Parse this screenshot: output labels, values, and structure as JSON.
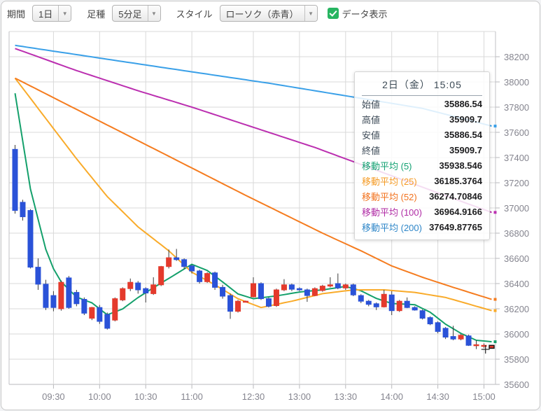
{
  "toolbar": {
    "period_label": "期間",
    "period_value": "1日",
    "bartype_label": "足種",
    "bartype_value": "5分足",
    "style_label": "スタイル",
    "style_value": "ローソク（赤青）",
    "dropdown_arrow": "▼",
    "data_display_label": "データ表示",
    "data_display_checked": true
  },
  "data_panel": {
    "title": "2日（金） 15:05",
    "rows": [
      {
        "label": "始値",
        "value": "35886.54",
        "color": "#3f4c59"
      },
      {
        "label": "高値",
        "value": "35909.7",
        "color": "#3f4c59"
      },
      {
        "label": "安値",
        "value": "35886.54",
        "color": "#3f4c59"
      },
      {
        "label": "終値",
        "value": "35909.7",
        "color": "#3f4c59"
      },
      {
        "label": "移動平均 (5)",
        "value": "35938.546",
        "color": "#13a172"
      },
      {
        "label": "移動平均 (25)",
        "value": "36185.3764",
        "color": "#f59a23"
      },
      {
        "label": "移動平均 (52)",
        "value": "36274.70846",
        "color": "#f2711c"
      },
      {
        "label": "移動平均 (100)",
        "value": "36964.9166",
        "color": "#b02ba5"
      },
      {
        "label": "移動平均 (200)",
        "value": "37649.87765",
        "color": "#2e86c8"
      }
    ]
  },
  "chart_data": {
    "type": "candlestick",
    "title": "",
    "y_axis": {
      "min": 35600,
      "max": 38400,
      "tick_step": 200,
      "tick_labels": [
        "38200",
        "38000",
        "37800",
        "37600",
        "37400",
        "37200",
        "37000",
        "36800",
        "36600",
        "36400",
        "36200",
        "36000",
        "35800",
        "35600"
      ]
    },
    "x_ticks": [
      {
        "slot": 5,
        "label": "09:30"
      },
      {
        "slot": 11,
        "label": "10:00"
      },
      {
        "slot": 17,
        "label": "10:30"
      },
      {
        "slot": 23,
        "label": "11:00"
      },
      {
        "slot": 31,
        "label": "12:30"
      },
      {
        "slot": 37,
        "label": "13:00"
      },
      {
        "slot": 43,
        "label": "13:30"
      },
      {
        "slot": 49,
        "label": "14:00"
      },
      {
        "slot": 55,
        "label": "14:30"
      },
      {
        "slot": 61,
        "label": "15:00"
      }
    ],
    "candles": [
      [
        "09:05",
        37465,
        37500,
        36955,
        36980
      ],
      [
        "09:10",
        37045,
        37065,
        36900,
        36930
      ],
      [
        "09:15",
        36980,
        36990,
        36520,
        36530
      ],
      [
        "09:20",
        36530,
        36600,
        36350,
        36395
      ],
      [
        "09:25",
        36395,
        36430,
        36190,
        36210
      ],
      [
        "09:30",
        36305,
        36340,
        36180,
        36210
      ],
      [
        "09:35",
        36200,
        36425,
        36185,
        36410
      ],
      [
        "09:40",
        36445,
        36460,
        36200,
        36210
      ],
      [
        "09:45",
        36330,
        36350,
        36220,
        36240
      ],
      [
        "09:50",
        36275,
        36290,
        36150,
        36165
      ],
      [
        "09:55",
        36125,
        36215,
        36110,
        36210
      ],
      [
        "10:00",
        36210,
        36230,
        36080,
        36100
      ],
      [
        "10:05",
        36155,
        36170,
        36035,
        36045
      ],
      [
        "10:10",
        36110,
        36290,
        36100,
        36280
      ],
      [
        "10:15",
        36270,
        36370,
        36260,
        36360
      ],
      [
        "10:20",
        36360,
        36440,
        36340,
        36410
      ],
      [
        "10:25",
        36405,
        36420,
        36320,
        36350
      ],
      [
        "10:30",
        36360,
        36370,
        36250,
        36325
      ],
      [
        "10:35",
        36320,
        36450,
        36310,
        36390
      ],
      [
        "10:40",
        36390,
        36540,
        36380,
        36535
      ],
      [
        "10:45",
        36535,
        36670,
        36520,
        36605
      ],
      [
        "10:50",
        36605,
        36675,
        36580,
        36590
      ],
      [
        "10:55",
        36590,
        36600,
        36515,
        36535
      ],
      [
        "11:00",
        36540,
        36550,
        36480,
        36500
      ],
      [
        "11:05",
        36500,
        36510,
        36400,
        36415
      ],
      [
        "11:10",
        36415,
        36490,
        36405,
        36480
      ],
      [
        "11:15",
        36485,
        36495,
        36350,
        36370
      ],
      [
        "11:20",
        36370,
        36390,
        36280,
        36300
      ],
      [
        "11:25",
        36305,
        36320,
        36120,
        36180
      ],
      [
        "11:30",
        36180,
        36270,
        36170,
        36260
      ],
      [
        "11:35",
        36260,
        36265,
        36255,
        36260
      ],
      [
        "12:30",
        36295,
        36450,
        36290,
        36400
      ],
      [
        "12:35",
        36400,
        36410,
        36270,
        36280
      ],
      [
        "12:40",
        36280,
        36290,
        36210,
        36220
      ],
      [
        "12:45",
        36225,
        36360,
        36215,
        36350
      ],
      [
        "12:50",
        36350,
        36435,
        36340,
        36390
      ],
      [
        "12:55",
        36390,
        36400,
        36340,
        36355
      ],
      [
        "13:00",
        36360,
        36370,
        36340,
        36350
      ],
      [
        "13:05",
        36350,
        36360,
        36255,
        36305
      ],
      [
        "13:10",
        36305,
        36370,
        36300,
        36360
      ],
      [
        "13:15",
        36345,
        36390,
        36335,
        36380
      ],
      [
        "13:20",
        36380,
        36450,
        36370,
        36390
      ],
      [
        "13:25",
        36400,
        36480,
        36355,
        36365
      ],
      [
        "13:30",
        36365,
        36400,
        36350,
        36390
      ],
      [
        "13:35",
        36390,
        36400,
        36300,
        36310
      ],
      [
        "13:40",
        36305,
        36315,
        36245,
        36260
      ],
      [
        "13:45",
        36260,
        36270,
        36220,
        36235
      ],
      [
        "13:50",
        36240,
        36250,
        36190,
        36215
      ],
      [
        "13:55",
        36215,
        36350,
        36210,
        36315
      ],
      [
        "14:00",
        36310,
        36340,
        36150,
        36185
      ],
      [
        "14:05",
        36185,
        36270,
        36175,
        36260
      ],
      [
        "14:10",
        36260,
        36290,
        36205,
        36210
      ],
      [
        "14:15",
        36210,
        36220,
        36185,
        36190
      ],
      [
        "14:20",
        36185,
        36195,
        36115,
        36125
      ],
      [
        "14:25",
        36130,
        36140,
        36070,
        36080
      ],
      [
        "14:30",
        36090,
        36100,
        36005,
        36020
      ],
      [
        "14:35",
        36045,
        36055,
        35960,
        35975
      ],
      [
        "14:40",
        35980,
        36065,
        35950,
        35960
      ],
      [
        "14:45",
        35960,
        36000,
        35950,
        35990
      ],
      [
        "14:50",
        35985,
        35995,
        35905,
        35910
      ],
      [
        "14:55",
        35910,
        35950,
        35880,
        35915
      ],
      [
        "15:00",
        35905,
        35925,
        35890,
        35910
      ],
      [
        "15:05",
        35886.54,
        35909.7,
        35886.54,
        35909.7
      ]
    ],
    "ma_lines": [
      {
        "name": "移動平均 (5)",
        "period": 5,
        "color": "#14a06b",
        "points": [
          [
            0,
            37910
          ],
          [
            2,
            37150
          ],
          [
            4,
            36672
          ],
          [
            5,
            36518
          ],
          [
            6,
            36414
          ],
          [
            8,
            36293
          ],
          [
            10,
            36247
          ],
          [
            12,
            36152
          ],
          [
            14,
            36199
          ],
          [
            16,
            36289
          ],
          [
            18,
            36367
          ],
          [
            20,
            36441
          ],
          [
            23,
            36553
          ],
          [
            25,
            36504
          ],
          [
            27,
            36413
          ],
          [
            29,
            36318
          ],
          [
            31,
            36280
          ],
          [
            34,
            36302
          ],
          [
            37,
            36333
          ],
          [
            40,
            36350
          ],
          [
            43,
            36377
          ],
          [
            45,
            36343
          ],
          [
            47,
            36282
          ],
          [
            49,
            36242
          ],
          [
            52,
            36232
          ],
          [
            54,
            36173
          ],
          [
            56,
            36078
          ],
          [
            58,
            36005
          ],
          [
            60,
            35950
          ],
          [
            62,
            35938.55
          ]
        ]
      },
      {
        "name": "移動平均 (25)",
        "period": 25,
        "color": "#f9ab2a",
        "points": [
          [
            0,
            38030
          ],
          [
            4,
            37710
          ],
          [
            8,
            37390
          ],
          [
            12,
            37090
          ],
          [
            16,
            36850
          ],
          [
            20,
            36660
          ],
          [
            23,
            36490
          ],
          [
            26,
            36390
          ],
          [
            29,
            36280
          ],
          [
            32,
            36210
          ],
          [
            36,
            36260
          ],
          [
            40,
            36320
          ],
          [
            44,
            36350
          ],
          [
            48,
            36350
          ],
          [
            52,
            36330
          ],
          [
            56,
            36290
          ],
          [
            62,
            36185.38
          ]
        ]
      },
      {
        "name": "移動平均 (52)",
        "period": 52,
        "color": "#f57c1f",
        "points": [
          [
            0,
            38030
          ],
          [
            10,
            37720
          ],
          [
            20,
            37410
          ],
          [
            30,
            37100
          ],
          [
            35,
            36950
          ],
          [
            40,
            36800
          ],
          [
            45,
            36660
          ],
          [
            49,
            36540
          ],
          [
            53,
            36450
          ],
          [
            57,
            36370
          ],
          [
            62,
            36274.71
          ]
        ]
      },
      {
        "name": "移動平均 (100)",
        "period": 100,
        "color": "#bb2fb0",
        "points": [
          [
            0,
            38265
          ],
          [
            8,
            38090
          ],
          [
            16,
            37930
          ],
          [
            23,
            37800
          ],
          [
            31,
            37640
          ],
          [
            39,
            37480
          ],
          [
            47,
            37300
          ],
          [
            55,
            37120
          ],
          [
            62,
            36964.92
          ]
        ]
      },
      {
        "name": "移動平均 (200)",
        "period": 200,
        "color": "#3aa0e8",
        "points": [
          [
            0,
            38290
          ],
          [
            12,
            38180
          ],
          [
            23,
            38080
          ],
          [
            33,
            37990
          ],
          [
            43,
            37890
          ],
          [
            53,
            37790
          ],
          [
            62,
            37649.88
          ]
        ]
      }
    ],
    "colors": {
      "up": "#e43a2c",
      "down": "#2a52d8",
      "wick": "#3b3b3b",
      "grid": "#d9d9d9",
      "frame": "#c0c0c5",
      "axis_text": "#85858f"
    },
    "highlight_last_candle": true,
    "crosshair": {
      "slot": 61.2,
      "value": 35878
    }
  }
}
